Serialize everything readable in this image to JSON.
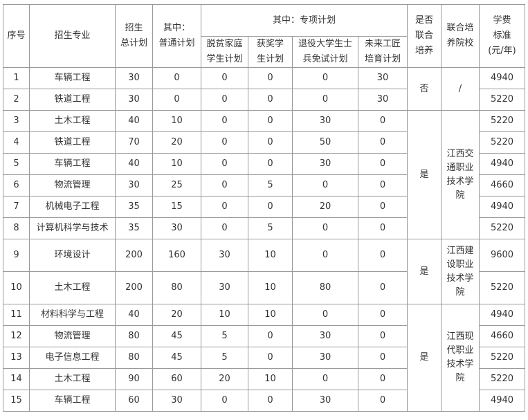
{
  "headers": {
    "seq": "序号",
    "major": "招生专业",
    "total": "招生\n总计划",
    "regular": "其中：\n普通计划",
    "special": "其中：专项计划",
    "poverty": "脱贫家庭\n学生计划",
    "award": "获奖学\n生计划",
    "veteran": "退役大学生士\n兵免试计划",
    "craftsman": "未来工匠\n培育计划",
    "joint": "是否\n联合\n培养",
    "partner": "联合培\n养院校",
    "fee": "学费\n标准\n(元/年)"
  },
  "rows": [
    [
      "1",
      "车辆工程",
      "30",
      "0",
      "0",
      "0",
      "0",
      "30",
      "4940"
    ],
    [
      "2",
      "铁道工程",
      "30",
      "0",
      "0",
      "0",
      "0",
      "30",
      "5220"
    ],
    [
      "3",
      "土木工程",
      "40",
      "10",
      "0",
      "0",
      "30",
      "0",
      "5220"
    ],
    [
      "4",
      "铁道工程",
      "70",
      "20",
      "0",
      "0",
      "50",
      "0",
      "5220"
    ],
    [
      "5",
      "车辆工程",
      "40",
      "10",
      "0",
      "0",
      "30",
      "0",
      "4940"
    ],
    [
      "6",
      "物流管理",
      "30",
      "25",
      "0",
      "5",
      "0",
      "0",
      "4660"
    ],
    [
      "7",
      "机械电子工程",
      "35",
      "15",
      "0",
      "0",
      "20",
      "0",
      "4940"
    ],
    [
      "8",
      "计算机科学与技术",
      "35",
      "30",
      "0",
      "5",
      "0",
      "0",
      "5220"
    ],
    [
      "9",
      "环境设计",
      "200",
      "160",
      "30",
      "10",
      "0",
      "0",
      "9600"
    ],
    [
      "10",
      "土木工程",
      "200",
      "80",
      "30",
      "10",
      "80",
      "0",
      "5220"
    ],
    [
      "11",
      "材料科学与工程",
      "40",
      "20",
      "10",
      "10",
      "0",
      "0",
      "4940"
    ],
    [
      "12",
      "物流管理",
      "80",
      "45",
      "5",
      "0",
      "30",
      "0",
      "4660"
    ],
    [
      "13",
      "电子信息工程",
      "80",
      "45",
      "5",
      "0",
      "30",
      "0",
      "5220"
    ],
    [
      "14",
      "土木工程",
      "90",
      "60",
      "20",
      "10",
      "0",
      "0",
      "5220"
    ],
    [
      "15",
      "车辆工程",
      "60",
      "30",
      "0",
      "0",
      "30",
      "0",
      "4940"
    ]
  ],
  "groups": [
    {
      "start": 0,
      "span": 2,
      "joint": "否",
      "partner": "/"
    },
    {
      "start": 2,
      "span": 6,
      "joint": "是",
      "partner": "江西交\n通职业\n技术学\n院"
    },
    {
      "start": 8,
      "span": 2,
      "joint": "是",
      "partner": "江西建\n设职业\n技术学\n院"
    },
    {
      "start": 10,
      "span": 5,
      "joint": "是",
      "partner": "江西现\n代职业\n技术学\n院"
    }
  ]
}
